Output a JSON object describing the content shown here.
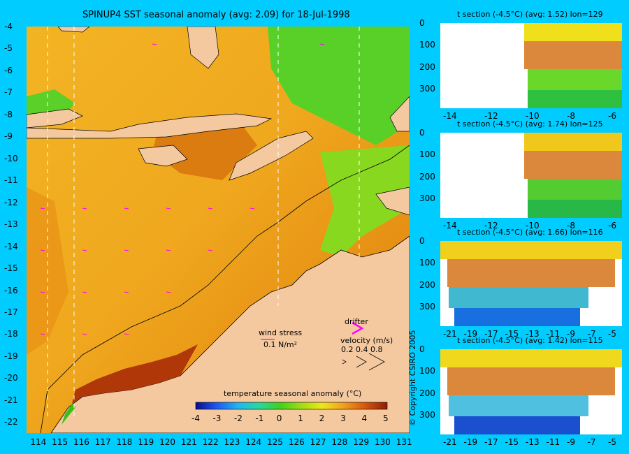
{
  "map": {
    "title": "SPINUP4 SST seasonal anomaly (avg: 2.09) for 18-Jul-1998",
    "x_ticks": [
      "114",
      "115",
      "116",
      "117",
      "118",
      "119",
      "120",
      "121",
      "122",
      "123",
      "124",
      "125",
      "126",
      "127",
      "128",
      "129",
      "130",
      "131"
    ],
    "y_ticks": [
      "-4",
      "-5",
      "-6",
      "-7",
      "-8",
      "-9",
      "-10",
      "-11",
      "-12",
      "-13",
      "-14",
      "-15",
      "-16",
      "-17",
      "-18",
      "-19",
      "-20",
      "-21",
      "-22"
    ],
    "wind_label": "wind stress",
    "wind_scale": "0.1 N/m²",
    "drifter_label": "drifter",
    "velocity_label": "velocity (m/s)",
    "velocity_values": "0.2 0.4 0.8",
    "colorbar_title": "temperature seasonal anomaly (°C)",
    "colorbar_ticks": [
      "-4",
      "-3",
      "-2",
      "-1",
      "0",
      "1",
      "2",
      "3",
      "4",
      "5"
    ]
  },
  "panels": [
    {
      "title": "t section (-4.5°C) (avg: 1.52) lon=129",
      "x_ticks": [
        "-14",
        "-12",
        "-10",
        "-8",
        "-6"
      ],
      "y_ticks": [
        "0",
        "100",
        "200",
        "300"
      ]
    },
    {
      "title": "t section (-4.5°C) (avg: 1.74) lon=125",
      "x_ticks": [
        "-14",
        "-12",
        "-10",
        "-8",
        "-6"
      ],
      "y_ticks": [
        "0",
        "100",
        "200",
        "300"
      ]
    },
    {
      "title": "t section (-4.5°C) (avg: 1.66) lon=116",
      "x_ticks": [
        "-21",
        "-19",
        "-17",
        "-15",
        "-13",
        "-11",
        "-9",
        "-7",
        "-5"
      ],
      "y_ticks": [
        "0",
        "100",
        "200",
        "300"
      ]
    },
    {
      "title": "t section (-4.5°C) (avg: 1.42) lon=115",
      "x_ticks": [
        "-21",
        "-19",
        "-17",
        "-15",
        "-13",
        "-11",
        "-9",
        "-7",
        "-5"
      ],
      "y_ticks": [
        "0",
        "100",
        "200",
        "300"
      ]
    }
  ],
  "copyright": "© Copyright CSIRO 2005",
  "colors": {
    "background": "#00ccff",
    "land": "#f5c9a0",
    "warm": "#f0a01e",
    "hot": "#b8400a",
    "cool": "#60d820"
  },
  "chart_data": {
    "type": "heatmap",
    "title": "SPINUP4 SST seasonal anomaly (avg: 2.09) for 18-Jul-1998",
    "xlim": [
      113.5,
      131.3
    ],
    "ylim": [
      -22.5,
      -4
    ],
    "colorbar_range": [
      -4,
      5
    ]
  }
}
